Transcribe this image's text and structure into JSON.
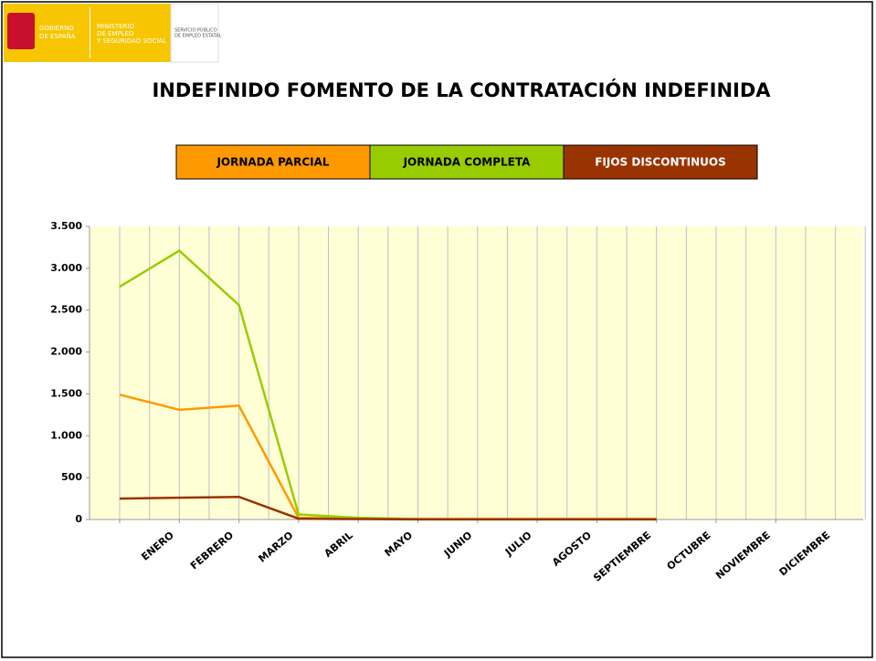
{
  "header": {
    "gov": [
      "GOBIERNO",
      "DE ESPAÑA"
    ],
    "ministry": [
      "MINISTERIO",
      "DE EMPLEO",
      "Y SEGURIDAD SOCIAL"
    ],
    "service": [
      "SERVICIO PÚBLICO",
      "DE EMPLEO ESTATAL"
    ]
  },
  "chart_data": {
    "type": "line",
    "title": "INDEFINIDO FOMENTO DE LA CONTRATACIÓN INDEFINIDA",
    "categories": [
      "ENERO",
      "FEBRERO",
      "MARZO",
      "ABRIL",
      "MAYO",
      "JUNIO",
      "JULIO",
      "AGOSTO",
      "SEPTIEMBRE",
      "OCTUBRE",
      "NOVIEMBRE",
      "DICIEMBRE"
    ],
    "series": [
      {
        "name": "JORNADA PARCIAL",
        "color": "#ff9900",
        "values": [
          1490,
          1310,
          1360,
          20,
          10,
          5,
          5,
          5,
          5,
          5,
          null,
          null
        ]
      },
      {
        "name": "JORNADA COMPLETA",
        "color": "#99cc00",
        "values": [
          2780,
          3210,
          2560,
          60,
          20,
          5,
          5,
          5,
          5,
          5,
          null,
          null
        ]
      },
      {
        "name": "FIJOS DISCONTINUOS",
        "color": "#993300",
        "values": [
          250,
          260,
          270,
          10,
          5,
          2,
          2,
          2,
          2,
          2,
          null,
          null
        ]
      }
    ],
    "ylim": [
      0,
      3500
    ],
    "yticks": [
      0,
      500,
      {
        "value": 1000,
        "label": "1.000"
      },
      {
        "value": 1500,
        "label": "1.500"
      },
      {
        "value": 2000,
        "label": "2.000"
      },
      {
        "value": 2500,
        "label": "2.500"
      },
      {
        "value": 3000,
        "label": "3.000"
      },
      {
        "value": 3500,
        "label": "3.500"
      }
    ]
  }
}
